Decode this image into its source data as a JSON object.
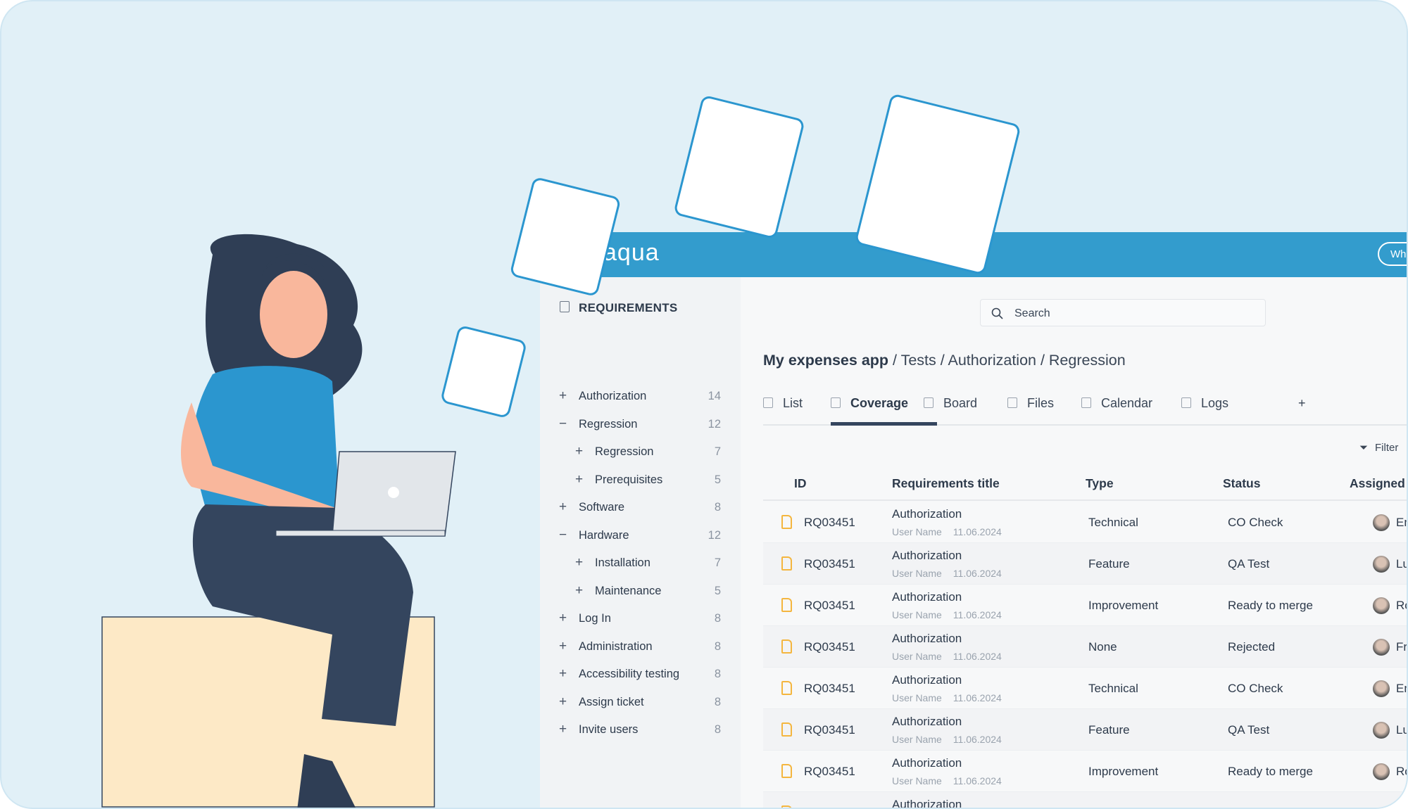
{
  "app": {
    "logo": "aqua",
    "whats_new": "What's new"
  },
  "sidebar": {
    "title": "REQUIREMENTS",
    "items": [
      {
        "label": "Authorization",
        "count": "14",
        "expanded": false,
        "level": 0
      },
      {
        "label": "Regression",
        "count": "12",
        "expanded": true,
        "level": 0
      },
      {
        "label": "Regression",
        "count": "7",
        "expanded": false,
        "level": 1
      },
      {
        "label": "Prerequisites",
        "count": "5",
        "expanded": false,
        "level": 1
      },
      {
        "label": "Software",
        "count": "8",
        "expanded": false,
        "level": 0
      },
      {
        "label": "Hardware",
        "count": "12",
        "expanded": true,
        "level": 0
      },
      {
        "label": "Installation",
        "count": "7",
        "expanded": false,
        "level": 1
      },
      {
        "label": "Maintenance",
        "count": "5",
        "expanded": false,
        "level": 1
      },
      {
        "label": "Log In",
        "count": "8",
        "expanded": false,
        "level": 0
      },
      {
        "label": "Administration",
        "count": "8",
        "expanded": false,
        "level": 0
      },
      {
        "label": "Accessibility testing",
        "count": "8",
        "expanded": false,
        "level": 0
      },
      {
        "label": "Assign ticket",
        "count": "8",
        "expanded": false,
        "level": 0
      },
      {
        "label": "Invite users",
        "count": "8",
        "expanded": false,
        "level": 0
      }
    ]
  },
  "search": {
    "placeholder": "Search"
  },
  "breadcrumb": {
    "root": "My expenses app",
    "rest": " / Tests / Authorization / Regression"
  },
  "tabs": [
    {
      "label": "List",
      "icon": "cube-icon"
    },
    {
      "label": "Coverage",
      "icon": "checklist-icon",
      "active": true
    },
    {
      "label": "Board",
      "icon": "play-icon"
    },
    {
      "label": "Files",
      "icon": "file-icon"
    },
    {
      "label": "Calendar",
      "icon": "calendar-icon"
    },
    {
      "label": "Logs",
      "icon": "log-icon"
    },
    {
      "label": "+",
      "icon": "plus-icon"
    }
  ],
  "filter": {
    "label": "Filter"
  },
  "table": {
    "columns": [
      "ID",
      "Requirements title",
      "Type",
      "Status",
      "Assigned t"
    ],
    "rows": [
      {
        "id": "RQ03451",
        "title": "Authorization",
        "user": "User Name",
        "date": "11.06.2024",
        "type": "Technical",
        "status": "CO Check",
        "assignee": "Emmi"
      },
      {
        "id": "RQ03451",
        "title": "Authorization",
        "user": "User Name",
        "date": "11.06.2024",
        "type": "Feature",
        "status": "QA Test",
        "assignee": "Luka S"
      },
      {
        "id": "RQ03451",
        "title": "Authorization",
        "user": "User Name",
        "date": "11.06.2024",
        "type": "Improvement",
        "status": "Ready to merge",
        "assignee": "Rosa I"
      },
      {
        "id": "RQ03451",
        "title": "Authorization",
        "user": "User Name",
        "date": "11.06.2024",
        "type": "None",
        "status": "Rejected",
        "assignee": "Fritz K"
      },
      {
        "id": "RQ03451",
        "title": "Authorization",
        "user": "User Name",
        "date": "11.06.2024",
        "type": "Technical",
        "status": "CO Check",
        "assignee": "Emmi"
      },
      {
        "id": "RQ03451",
        "title": "Authorization",
        "user": "User Name",
        "date": "11.06.2024",
        "type": "Feature",
        "status": "QA Test",
        "assignee": "Luka S"
      },
      {
        "id": "RQ03451",
        "title": "Authorization",
        "user": "User Name",
        "date": "11.06.2024",
        "type": "Improvement",
        "status": "Ready to merge",
        "assignee": "Rosa I"
      },
      {
        "id": "",
        "title": "Authorization",
        "user": "",
        "date": "",
        "type": "",
        "status": "",
        "assignee": ""
      }
    ]
  },
  "colors": {
    "header": "#339ccd",
    "accent_dark": "#34455e",
    "file_icon": "#f4b63f",
    "background": "#e1f0f7"
  }
}
